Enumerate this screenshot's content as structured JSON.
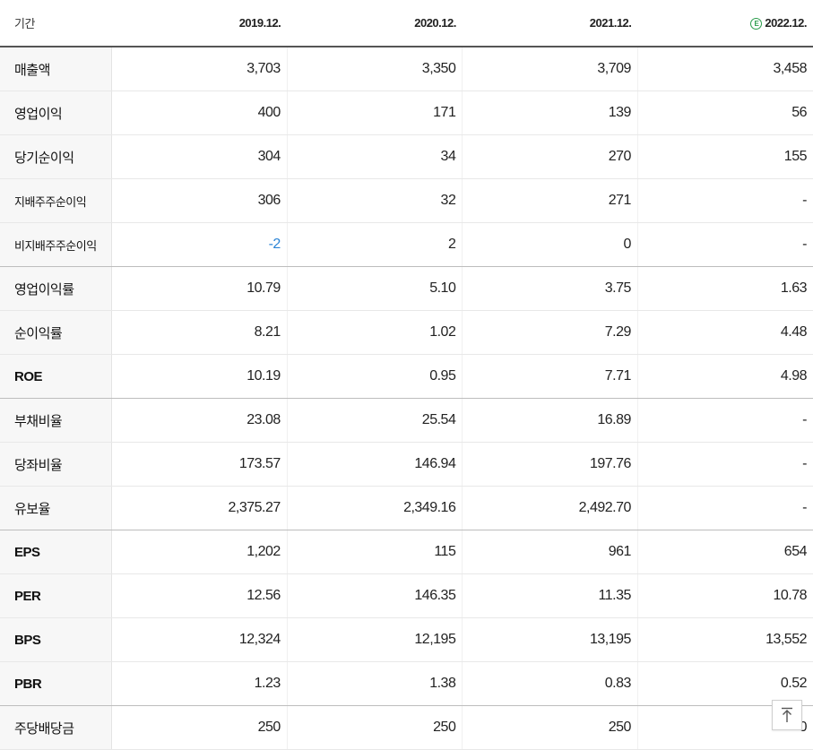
{
  "header": {
    "label": "기간",
    "periods": [
      "2019.12.",
      "2020.12.",
      "2021.12.",
      "2022.12."
    ],
    "estimate_icon": "estimate-circle-e-icon",
    "estimate_icon_glyph": "E"
  },
  "rows": [
    {
      "label": "매출액",
      "values": [
        "3,703",
        "3,350",
        "3,709",
        "3,458"
      ]
    },
    {
      "label": "영업이익",
      "values": [
        "400",
        "171",
        "139",
        "56"
      ]
    },
    {
      "label": "당기순이익",
      "values": [
        "304",
        "34",
        "270",
        "155"
      ]
    },
    {
      "label": "지배주주순이익",
      "values": [
        "306",
        "32",
        "271",
        "-"
      ]
    },
    {
      "label": "비지배주주순이익",
      "values": [
        "-2",
        "2",
        "0",
        "-"
      ]
    },
    {
      "label": "영업이익률",
      "values": [
        "10.79",
        "5.10",
        "3.75",
        "1.63"
      ]
    },
    {
      "label": "순이익률",
      "values": [
        "8.21",
        "1.02",
        "7.29",
        "4.48"
      ]
    },
    {
      "label": "ROE",
      "values": [
        "10.19",
        "0.95",
        "7.71",
        "4.98"
      ]
    },
    {
      "label": "부채비율",
      "values": [
        "23.08",
        "25.54",
        "16.89",
        "-"
      ]
    },
    {
      "label": "당좌비율",
      "values": [
        "173.57",
        "146.94",
        "197.76",
        "-"
      ]
    },
    {
      "label": "유보율",
      "values": [
        "2,375.27",
        "2,349.16",
        "2,492.70",
        "-"
      ]
    },
    {
      "label": "EPS",
      "values": [
        "1,202",
        "115",
        "961",
        "654"
      ]
    },
    {
      "label": "PER",
      "values": [
        "12.56",
        "146.35",
        "11.35",
        "10.78"
      ]
    },
    {
      "label": "BPS",
      "values": [
        "12,324",
        "12,195",
        "13,195",
        "13,552"
      ]
    },
    {
      "label": "PBR",
      "values": [
        "1.23",
        "1.38",
        "0.83",
        "0.52"
      ]
    },
    {
      "label": "주당배당금",
      "values": [
        "250",
        "250",
        "250",
        "0"
      ]
    }
  ],
  "colors": {
    "negative": "#2b84d6",
    "estimate": "#2a9d4b"
  },
  "scroll_top_icon": "arrow-up-to-top-icon"
}
